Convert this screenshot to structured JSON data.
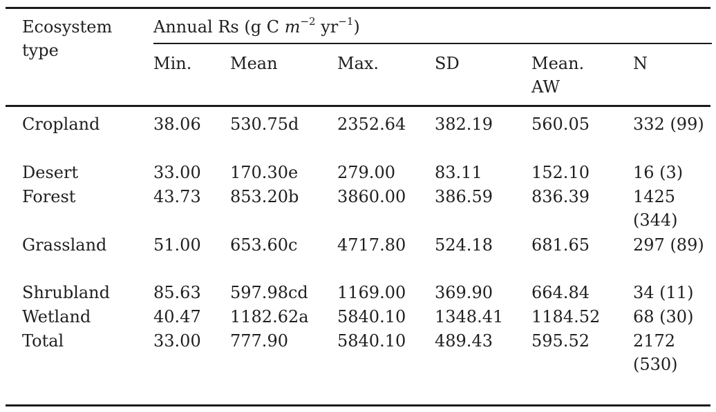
{
  "table": {
    "header": {
      "ecosystem": "Ecosystem type",
      "group_prefix": "Annual Rs (g C ",
      "group_unit_m": "m",
      "group_exp1": "−2",
      "group_unit_yr": " yr",
      "group_exp2": "−1",
      "group_suffix": ")",
      "columns": [
        "Min.",
        "Mean",
        "Max.",
        "SD",
        "Mean. AW",
        "N"
      ]
    },
    "rows": [
      {
        "type": "Cropland",
        "min": "38.06",
        "mean": "530.75d",
        "max": "2352.64",
        "sd": "382.19",
        "mean_aw": "560.05",
        "n": "332 (99)"
      },
      {
        "type": "Desert",
        "min": "33.00",
        "mean": "170.30e",
        "max": "279.00",
        "sd": "83.11",
        "mean_aw": "152.10",
        "n": "16 (3)"
      },
      {
        "type": "Forest",
        "min": "43.73",
        "mean": "853.20b",
        "max": "3860.00",
        "sd": "386.59",
        "mean_aw": "836.39",
        "n": "1425 (344)"
      },
      {
        "type": "Grassland",
        "min": "51.00",
        "mean": "653.60c",
        "max": "4717.80",
        "sd": "524.18",
        "mean_aw": "681.65",
        "n": "297 (89)"
      },
      {
        "type": "Shrubland",
        "min": "85.63",
        "mean": "597.98cd",
        "max": "1169.00",
        "sd": "369.90",
        "mean_aw": "664.84",
        "n": "34 (11)"
      },
      {
        "type": "Wetland",
        "min": "40.47",
        "mean": "1182.62a",
        "max": "5840.10",
        "sd": "1348.41",
        "mean_aw": "1184.52",
        "n": "68 (30)"
      },
      {
        "type": "Total",
        "min": "33.00",
        "mean": "777.90",
        "max": "5840.10",
        "sd": "489.43",
        "mean_aw": "595.52",
        "n": "2172 (530)"
      }
    ]
  }
}
